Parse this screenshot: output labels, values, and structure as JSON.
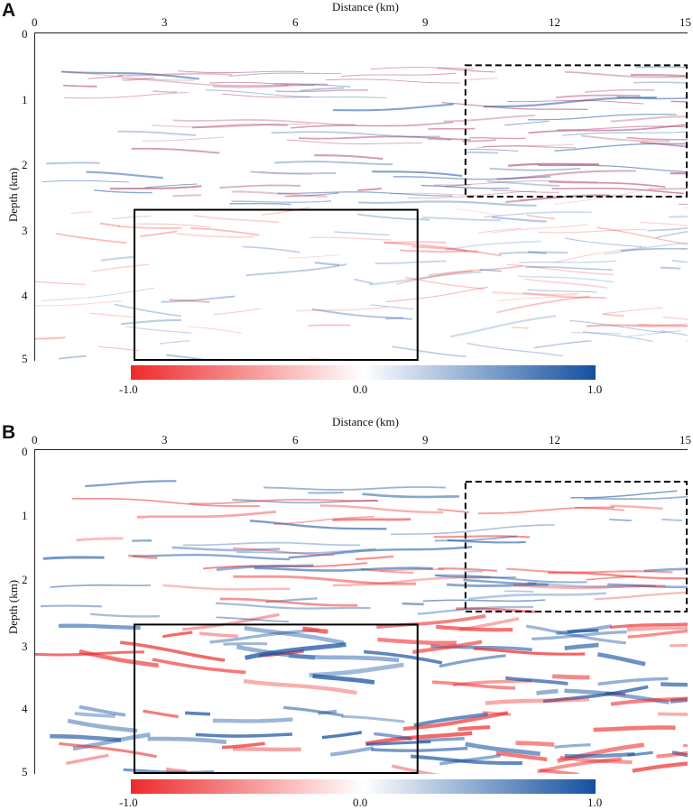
{
  "panels": [
    {
      "letter": "A",
      "xlabel": "Distance (km)",
      "ylabel": "Depth (km)",
      "xticks": [
        "0",
        "3",
        "6",
        "9",
        "12",
        "15"
      ],
      "yticks": [
        "0",
        "1",
        "2",
        "3",
        "4",
        "5"
      ],
      "colorbar": {
        "min_label": "-1.0",
        "mid_label": "0.0",
        "max_label": "1.0"
      }
    },
    {
      "letter": "B",
      "xlabel": "Distance (km)",
      "ylabel": "Depth (km)",
      "xticks": [
        "0",
        "3",
        "6",
        "9",
        "12",
        "15"
      ],
      "yticks": [
        "0",
        "1",
        "2",
        "3",
        "4",
        "5"
      ],
      "colorbar": {
        "min_label": "-1.0",
        "mid_label": "0.0",
        "max_label": "1.0"
      }
    }
  ],
  "colors": {
    "negative": "#ee2a2a",
    "zero": "#ffffff",
    "positive": "#1450a0"
  },
  "boxes": {
    "solid": {
      "x": [
        2.3,
        8.8
      ],
      "depth": [
        2.7,
        5.0
      ]
    },
    "dashed": {
      "x": [
        9.9,
        15.0
      ],
      "depth": [
        0.5,
        2.5
      ]
    }
  },
  "axes": {
    "x_range": [
      0,
      15
    ],
    "depth_range": [
      0,
      5
    ]
  }
}
